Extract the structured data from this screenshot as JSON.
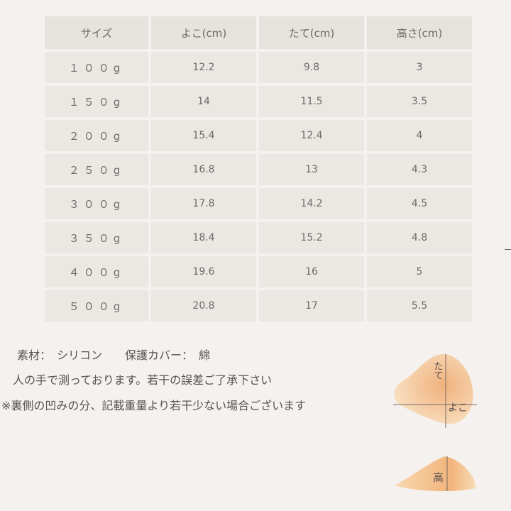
{
  "table": {
    "headers": [
      "サイズ",
      "よこ(cm)",
      "たて(cm)",
      "高さ(cm)"
    ],
    "rows": [
      [
        "１００g",
        "12.2",
        "9.8",
        "3"
      ],
      [
        "１５０g",
        "14",
        "11.5",
        "3.5"
      ],
      [
        "２００g",
        "15.4",
        "12.4",
        "4"
      ],
      [
        "２５０g",
        "16.8",
        "13",
        "4.3"
      ],
      [
        "３００g",
        "17.8",
        "14.2",
        "4.5"
      ],
      [
        "３５０g",
        "18.4",
        "15.2",
        "4.8"
      ],
      [
        "４００g",
        "19.6",
        "16",
        "5"
      ],
      [
        "５００g",
        "20.8",
        "17",
        "5.5"
      ]
    ]
  },
  "notes": {
    "material": "素材：　シリコン　　保護カバー：　綿",
    "measure": "人の手で測っております。若干の誤差ご了承下さい",
    "weight": "※裏側の凹みの分、記載重量より若干少ない場合ございます"
  },
  "diagram": {
    "tate": "たて",
    "yoko": "よこ",
    "taka": "高",
    "colors": {
      "pad": "#f3c99a",
      "pad_center": "#f0b17e"
    }
  }
}
